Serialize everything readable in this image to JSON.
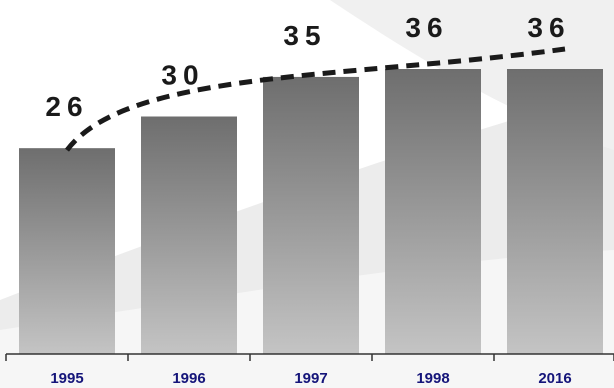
{
  "chart_data": {
    "type": "bar",
    "categories": [
      "1995",
      "1996",
      "1997",
      "1998",
      "2016"
    ],
    "values": [
      26,
      30,
      35,
      36,
      36
    ],
    "data_labels": [
      "26",
      "30",
      "35",
      "36",
      "36"
    ],
    "title": "",
    "xlabel": "",
    "ylabel": "",
    "grid": false,
    "legend": "none",
    "trend_line": "dashed curve rising from first bar to last bar",
    "colors": {
      "bar_top": "#6e6e6e",
      "bar_bottom": "#c4c4c4",
      "label": "#1a1a1a",
      "tick_label": "#15157a",
      "trend": "#1a1a1a"
    }
  }
}
